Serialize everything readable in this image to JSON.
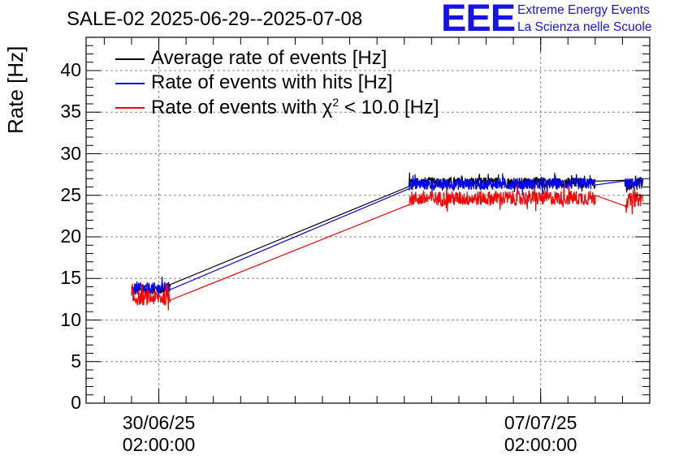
{
  "chart_data": {
    "type": "line",
    "title": "SALE-02 2025-06-29--2025-07-08",
    "ylabel": "Rate [Hz]",
    "xlabel": "",
    "ylim": [
      0,
      44
    ],
    "yticks": [
      "0",
      "5",
      "10",
      "15",
      "20",
      "25",
      "30",
      "35",
      "40"
    ],
    "xtick_labels": [
      {
        "date": "30/06/25",
        "time": "02:00:00"
      },
      {
        "date": "07/07/25",
        "time": "02:00:00"
      }
    ],
    "xlim_days_note": "",
    "grid": true,
    "legend_position": "top-left",
    "segments": [
      {
        "start": "2025-06-29T14:00",
        "end": "2025-06-30T07:00"
      },
      {
        "start": "2025-07-04T16:00",
        "end": "2025-07-08T02:00"
      },
      {
        "start": "2025-07-08T15:00",
        "end": "2025-07-08T23:00"
      }
    ],
    "series": [
      {
        "name": "Average rate of events [Hz]",
        "color": "#000000",
        "points": [
          [
            "2025-06-29T14:00",
            13.5
          ],
          [
            "2025-06-30T07:00",
            13.8
          ],
          [
            "2025-07-04T16:00",
            26.6
          ],
          [
            "2025-07-08T02:00",
            26.5
          ],
          [
            "2025-07-08T15:00",
            26.4
          ],
          [
            "2025-07-08T23:00",
            26.6
          ]
        ],
        "noise": 0.6
      },
      {
        "name": "Rate of events with hits [Hz]",
        "color": "#0000ff",
        "points": [
          [
            "2025-06-29T14:00",
            13.7
          ],
          [
            "2025-06-30T07:00",
            13.9
          ],
          [
            "2025-07-04T16:00",
            26.3
          ],
          [
            "2025-07-08T02:00",
            26.4
          ],
          [
            "2025-07-08T15:00",
            26.3
          ],
          [
            "2025-07-08T23:00",
            26.5
          ]
        ],
        "noise": 0.7
      },
      {
        "name": "Rate of events with χ² < 10.0 [Hz]",
        "color": "#ff0000",
        "points": [
          [
            "2025-06-29T14:00",
            12.6
          ],
          [
            "2025-06-30T07:00",
            12.7
          ],
          [
            "2025-07-04T16:00",
            24.6
          ],
          [
            "2025-07-08T02:00",
            24.7
          ],
          [
            "2025-07-08T15:00",
            24.3
          ],
          [
            "2025-07-08T23:00",
            24.6
          ]
        ],
        "noise": 0.9
      }
    ]
  },
  "logo": {
    "mark": "EEE",
    "line1": "Extreme Energy Events",
    "line2": "La Scienza nelle Scuole"
  },
  "legend": {
    "item0": "Average rate of events [Hz]",
    "item1": "Rate of events with hits [Hz]",
    "item2_prefix": "Rate of events with χ",
    "item2_sup": "2",
    "item2_suffix": " < 10.0 [Hz]"
  }
}
